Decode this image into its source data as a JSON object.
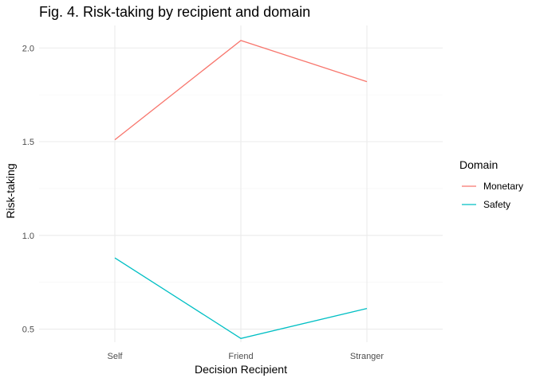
{
  "chart_data": {
    "type": "line",
    "title": "Fig. 4. Risk-taking by recipient and domain",
    "xlabel": "Decision Recipient",
    "ylabel": "Risk-taking",
    "categories": [
      "Self",
      "Friend",
      "Stranger"
    ],
    "ylim": [
      0.43,
      2.12
    ],
    "yticks": [
      0.5,
      1.0,
      1.5,
      2.0
    ],
    "ytick_labels": [
      "0.5",
      "1.0",
      "1.5",
      "2.0"
    ],
    "grid": true,
    "legend": {
      "title": "Domain",
      "position": "right"
    },
    "series": [
      {
        "name": "Monetary",
        "color": "#F8766D",
        "values": [
          1.51,
          2.04,
          1.82
        ]
      },
      {
        "name": "Safety",
        "color": "#00BFC4",
        "values": [
          0.88,
          0.45,
          0.61
        ]
      }
    ]
  }
}
